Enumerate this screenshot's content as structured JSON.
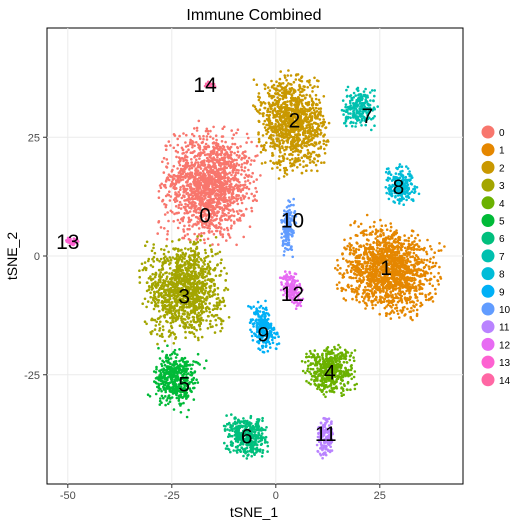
{
  "chart_data": {
    "type": "scatter",
    "title": "Immune Combined",
    "xlabel": "tSNE_1",
    "ylabel": "tSNE_2",
    "xlim": [
      -55,
      45
    ],
    "ylim": [
      -48,
      48
    ],
    "xticks": [
      -50,
      -25,
      0,
      25
    ],
    "yticks": [
      -25,
      0,
      25
    ],
    "grid": true,
    "legend_position": "right",
    "clusters": [
      {
        "name": "0",
        "color": "#F8766D",
        "center": [
          -16,
          15
        ],
        "label": "0",
        "label_pos": [
          -17,
          8.5
        ]
      },
      {
        "name": "1",
        "color": "#E58700",
        "center": [
          27,
          -3
        ],
        "label": "1",
        "label_pos": [
          26.5,
          -2.5
        ]
      },
      {
        "name": "2",
        "color": "#C99800",
        "center": [
          4,
          28
        ],
        "label": "2",
        "label_pos": [
          4.5,
          28.5
        ]
      },
      {
        "name": "3",
        "color": "#A3A500",
        "center": [
          -22,
          -7
        ],
        "label": "3",
        "label_pos": [
          -22,
          -8.5
        ]
      },
      {
        "name": "4",
        "color": "#6BB100",
        "center": [
          13,
          -24
        ],
        "label": "4",
        "label_pos": [
          13,
          -24.5
        ]
      },
      {
        "name": "5",
        "color": "#00BA38",
        "center": [
          -24,
          -26
        ],
        "label": "5",
        "label_pos": [
          -22,
          -27
        ]
      },
      {
        "name": "6",
        "color": "#00BF7D",
        "center": [
          -7,
          -38
        ],
        "label": "6",
        "label_pos": [
          -7,
          -38
        ]
      },
      {
        "name": "7",
        "color": "#00C0AF",
        "center": [
          20,
          31
        ],
        "label": "7",
        "label_pos": [
          22,
          29.5
        ]
      },
      {
        "name": "8",
        "color": "#00BCD8",
        "center": [
          30,
          15
        ],
        "label": "8",
        "label_pos": [
          29.5,
          14.5
        ]
      },
      {
        "name": "9",
        "color": "#00B0F6",
        "center": [
          -3,
          -15
        ],
        "label": "9",
        "label_pos": [
          -3,
          -16.5
        ]
      },
      {
        "name": "10",
        "color": "#619CFF",
        "center": [
          3,
          6
        ],
        "label": "10",
        "label_pos": [
          4,
          7.5
        ]
      },
      {
        "name": "11",
        "color": "#B983FF",
        "center": [
          12,
          -38
        ],
        "label": "11",
        "label_pos": [
          12,
          -37.5
        ]
      },
      {
        "name": "12",
        "color": "#E76BF3",
        "center": [
          4,
          -7
        ],
        "label": "12",
        "label_pos": [
          4,
          -8
        ]
      },
      {
        "name": "13",
        "color": "#FD61D1",
        "center": [
          -49,
          3
        ],
        "label": "13",
        "label_pos": [
          -50,
          3
        ]
      },
      {
        "name": "14",
        "color": "#FF67A4",
        "center": [
          -16,
          36
        ],
        "label": "14",
        "label_pos": [
          -17,
          36
        ]
      }
    ]
  }
}
